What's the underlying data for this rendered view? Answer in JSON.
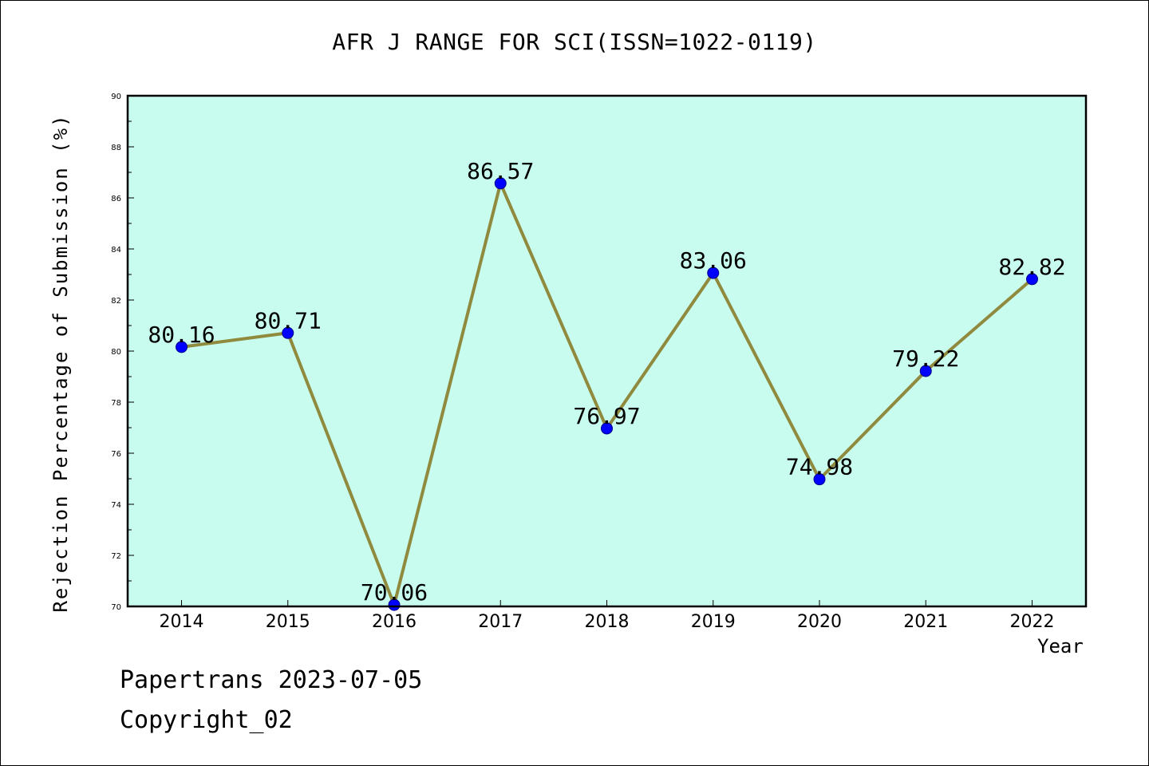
{
  "footer": {
    "line1": "Papertrans 2023-07-05",
    "line2": "Copyright_02"
  },
  "chart_data": {
    "type": "line",
    "title": "AFR J RANGE FOR SCI(ISSN=1022-0119)",
    "xlabel": "Year",
    "ylabel": "Rejection Percentage of Submission (%)",
    "categories": [
      "2014",
      "2015",
      "2016",
      "2017",
      "2018",
      "2019",
      "2020",
      "2021",
      "2022"
    ],
    "series": [
      {
        "values": [
          80.16,
          80.71,
          70.06,
          86.57,
          76.97,
          83.06,
          74.98,
          79.22,
          82.82
        ],
        "labels": [
          "80.16",
          "80.71",
          "70.06",
          "86.57",
          "76.97",
          "83.06",
          "74.98",
          "79.22",
          "82.82"
        ]
      }
    ],
    "ylim": [
      70,
      90
    ],
    "yticks": [
      "70",
      "72",
      "74",
      "76",
      "78",
      "80",
      "82",
      "84",
      "86",
      "88",
      "90"
    ],
    "grid": false,
    "colors": {
      "plot_background": "#c8fcee",
      "line": "#8f8a3e",
      "marker": "#0000ff",
      "axis": "#000000"
    }
  }
}
